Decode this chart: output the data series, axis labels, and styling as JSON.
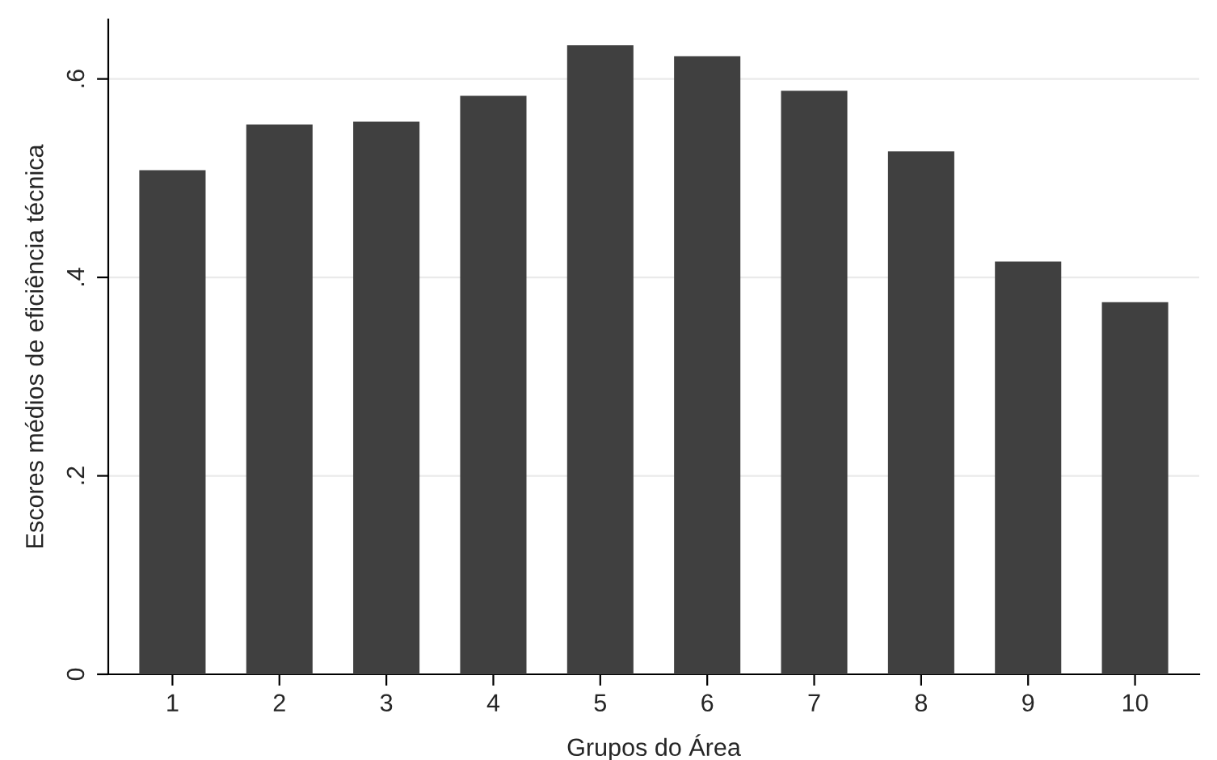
{
  "chart_data": {
    "type": "bar",
    "xlabel": "Grupos do Área",
    "ylabel": "Escores médios de eficiência técnica",
    "categories": [
      "1",
      "2",
      "3",
      "4",
      "5",
      "6",
      "7",
      "8",
      "9",
      "10"
    ],
    "values": [
      0.508,
      0.554,
      0.557,
      0.583,
      0.634,
      0.623,
      0.588,
      0.527,
      0.416,
      0.375
    ],
    "color": "#404040",
    "ylim": [
      0,
      0.66
    ],
    "yticks": [
      0,
      {
        "value": 0.2,
        "label": ".2"
      },
      {
        "value": 0.4,
        "label": ".4"
      },
      {
        "value": 0.6,
        "label": ".6"
      }
    ],
    "grid": "y"
  }
}
